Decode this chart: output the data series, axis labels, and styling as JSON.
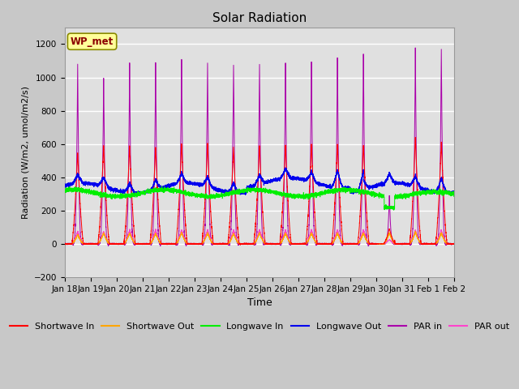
{
  "title": "Solar Radiation",
  "ylabel": "Radiation (W/m2, umol/m2/s)",
  "xlabel": "Time",
  "label_text": "WP_met",
  "ylim": [
    -200,
    1300
  ],
  "yticks": [
    -200,
    0,
    200,
    400,
    600,
    800,
    1000,
    1200
  ],
  "series": {
    "shortwave_in": {
      "color": "#FF0000",
      "label": "Shortwave In"
    },
    "shortwave_out": {
      "color": "#FFA500",
      "label": "Shortwave Out"
    },
    "longwave_in": {
      "color": "#00EE00",
      "label": "Longwave In"
    },
    "longwave_out": {
      "color": "#0000EE",
      "label": "Longwave Out"
    },
    "par_in": {
      "color": "#AA00AA",
      "label": "PAR in"
    },
    "par_out": {
      "color": "#FF44CC",
      "label": "PAR out"
    }
  },
  "xtick_labels": [
    "Jan 18",
    "Jan 19",
    "Jan 20",
    "Jan 21",
    "Jan 22",
    "Jan 23",
    "Jan 24",
    "Jan 25",
    "Jan 26",
    "Jan 27",
    "Jan 28",
    "Jan 29",
    "Jan 30",
    "Jan 31",
    "Feb 1",
    "Feb 2"
  ],
  "xtick_positions": [
    0,
    1,
    2,
    3,
    4,
    5,
    6,
    7,
    8,
    9,
    10,
    11,
    12,
    13,
    14,
    15
  ]
}
